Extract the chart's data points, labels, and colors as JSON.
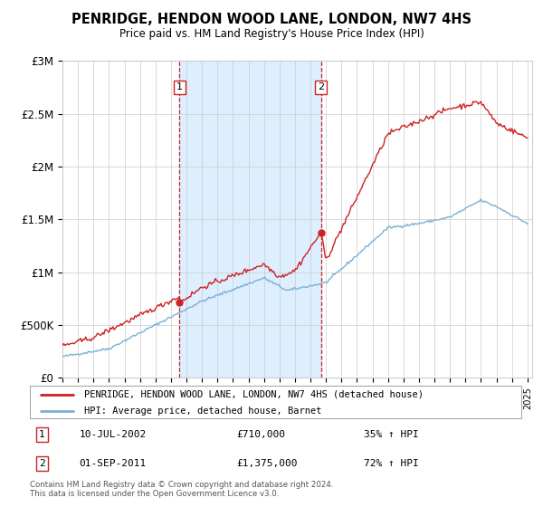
{
  "title": "PENRIDGE, HENDON WOOD LANE, LONDON, NW7 4HS",
  "subtitle": "Price paid vs. HM Land Registry's House Price Index (HPI)",
  "legend_line1": "PENRIDGE, HENDON WOOD LANE, LONDON, NW7 4HS (detached house)",
  "legend_line2": "HPI: Average price, detached house, Barnet",
  "annotation1_date": "10-JUL-2002",
  "annotation1_price": "£710,000",
  "annotation1_hpi": "35% ↑ HPI",
  "annotation2_date": "01-SEP-2011",
  "annotation2_price": "£1,375,000",
  "annotation2_hpi": "72% ↑ HPI",
  "copyright": "Contains HM Land Registry data © Crown copyright and database right 2024.\nThis data is licensed under the Open Government Licence v3.0.",
  "hpi_color": "#7ab0d4",
  "price_color": "#cc2222",
  "annotation_box_color": "#cc2222",
  "shading_color": "#ddeeff",
  "background_color": "#ffffff",
  "grid_color": "#cccccc",
  "ylim": [
    0,
    3000000
  ],
  "yticks": [
    0,
    500000,
    1000000,
    1500000,
    2000000,
    2500000,
    3000000
  ],
  "ytick_labels": [
    "£0",
    "£500K",
    "£1M",
    "£1.5M",
    "£2M",
    "£2.5M",
    "£3M"
  ],
  "purchase1_year": 2002.55,
  "purchase1_value": 710000,
  "purchase2_year": 2011.67,
  "purchase2_value": 1375000
}
